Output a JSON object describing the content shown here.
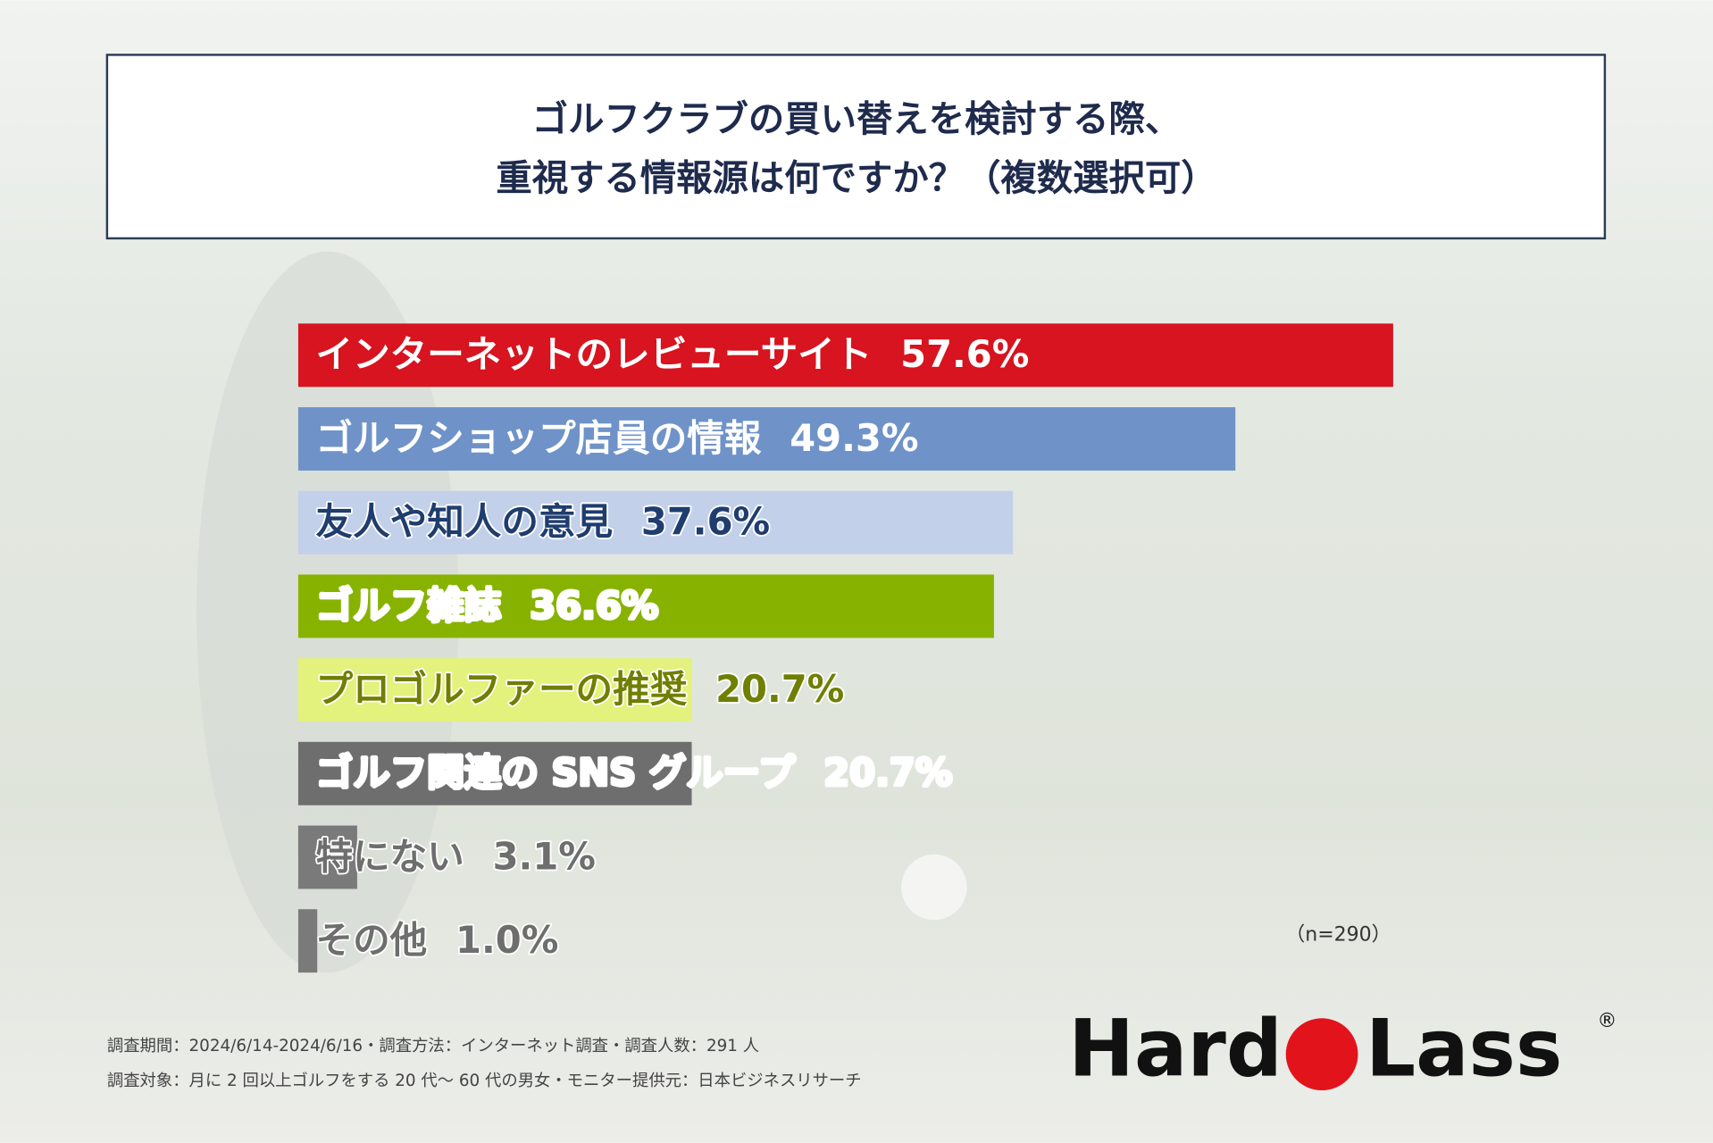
{
  "chart_data": {
    "type": "bar",
    "orientation": "horizontal",
    "title": [
      "ゴルフクラブの買い替えを検討する際、",
      "重視する情報源は何ですか？（複数選択可）"
    ],
    "categories": [
      "インターネットのレビューサイト",
      "ゴルフショップ店員の情報",
      "友人や知人の意見",
      "ゴルフ雑誌",
      "プロゴルファーの推奨",
      "ゴルフ関連の SNS グループ",
      "特にない",
      "その他"
    ],
    "values": [
      57.6,
      49.3,
      37.6,
      36.6,
      20.7,
      20.7,
      3.1,
      1.0
    ],
    "value_labels": [
      "57.6%",
      "49.3%",
      "37.6%",
      "36.6%",
      "20.7%",
      "20.7%",
      "3.1%",
      "1.0%"
    ],
    "colors": [
      "#d7141f",
      "#6f93c8",
      "#c3d0ea",
      "#87b300",
      "#e2f27c",
      "#6e6e6e",
      "#7a7a7a",
      "#7a7a7a"
    ],
    "label_colors": [
      "#ffffff",
      "#ffffff",
      "#1f3d6e",
      "#ffffff",
      "#6f7f00",
      "#ffffff",
      "#6e6e6e",
      "#6e6e6e"
    ],
    "annotation": "（n=290）",
    "footer": [
      "調査期間：2024/6/14-2024/6/16・調査方法：インターネット調査・調査人数：291 人",
      "調査対象：月に 2 回以上ゴルフをする 20 代〜 60 代の男女・モニター提供元：日本ビジネスリサーチ"
    ],
    "brand": [
      "Hard",
      "Lass",
      "®"
    ]
  }
}
